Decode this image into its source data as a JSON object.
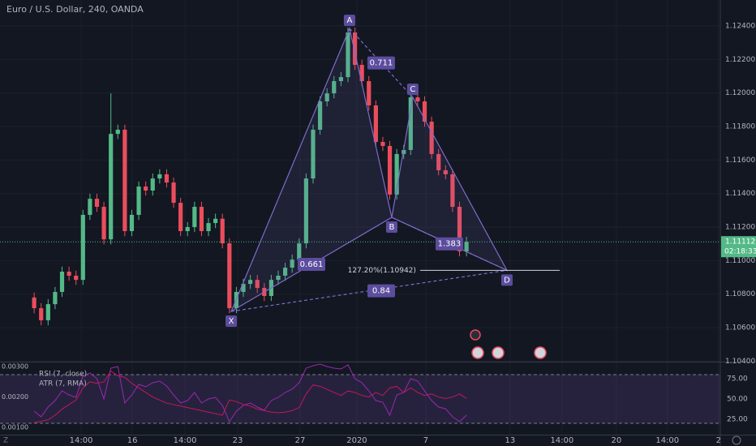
{
  "chart_data": [
    {
      "type": "candlestick",
      "title": "Euro / U.S. Dollar, 240, OANDA",
      "corner_label": "Z",
      "colors": {
        "up": "#53b987",
        "down": "#eb4d5c"
      },
      "open": [
        1.1078,
        1.10716,
        1.10644,
        1.1074,
        1.10813,
        1.10934,
        1.1091,
        1.10885,
        1.11273,
        1.11369,
        1.11321,
        1.11127,
        1.11756,
        1.11781,
        1.11176,
        1.11273,
        1.11442,
        1.11418,
        1.1149,
        1.11515,
        1.11466,
        1.11345,
        1.11176,
        1.112,
        1.11321,
        1.11176,
        1.11224,
        1.1125,
        1.11103,
        1.10716,
        1.10813,
        1.10861,
        1.10885,
        1.10837,
        1.10789,
        1.10885,
        1.1091,
        1.10958,
        1.11006,
        1.11103,
        1.1149,
        1.11781,
        1.1195,
        1.11998,
        1.12071,
        1.12095,
        1.12361,
        1.12168,
        1.12071,
        1.11926,
        1.11708,
        1.11684,
        1.11394,
        1.11636,
        1.1166,
        1.11974,
        1.1195,
        1.11829,
        1.11636,
        1.11539,
        1.11515,
        1.11321,
        1.11055
      ],
      "high": [
        1.1081,
        1.10746,
        1.1077,
        1.10843,
        1.10964,
        1.10964,
        1.1094,
        1.11303,
        1.11399,
        1.11399,
        1.11351,
        1.11998,
        1.11811,
        1.11811,
        1.11303,
        1.11472,
        1.11472,
        1.1152,
        1.11545,
        1.11545,
        1.11496,
        1.11375,
        1.1123,
        1.11351,
        1.11351,
        1.11254,
        1.1128,
        1.1128,
        1.11133,
        1.10843,
        1.10891,
        1.10915,
        1.10915,
        1.10867,
        1.10915,
        1.1094,
        1.10988,
        1.11036,
        1.11133,
        1.1152,
        1.11811,
        1.1198,
        1.12028,
        1.12101,
        1.12125,
        1.12391,
        1.12391,
        1.12198,
        1.12101,
        1.11956,
        1.11738,
        1.11714,
        1.11666,
        1.1169,
        1.12004,
        1.12004,
        1.1198,
        1.11859,
        1.11666,
        1.11569,
        1.11545,
        1.11351,
        1.11142
      ],
      "low": [
        1.10686,
        1.10614,
        1.10614,
        1.1071,
        1.10783,
        1.1088,
        1.10855,
        1.10855,
        1.11243,
        1.11291,
        1.11097,
        1.11097,
        1.11726,
        1.11146,
        1.11146,
        1.11243,
        1.11388,
        1.11388,
        1.1146,
        1.11436,
        1.11315,
        1.11146,
        1.11146,
        1.1117,
        1.11146,
        1.11146,
        1.11194,
        1.11073,
        1.10686,
        1.10686,
        1.10783,
        1.10831,
        1.10807,
        1.10759,
        1.10759,
        1.10855,
        1.1088,
        1.10928,
        1.10976,
        1.11073,
        1.1146,
        1.11751,
        1.1192,
        1.11968,
        1.12041,
        1.12065,
        1.12138,
        1.12041,
        1.11896,
        1.11678,
        1.11654,
        1.11364,
        1.11364,
        1.11606,
        1.1163,
        1.1192,
        1.11799,
        1.11606,
        1.11509,
        1.11485,
        1.11291,
        1.11025,
        1.11025
      ],
      "close": [
        1.10716,
        1.10644,
        1.1074,
        1.10813,
        1.10934,
        1.1091,
        1.10885,
        1.11273,
        1.11369,
        1.11321,
        1.11127,
        1.11756,
        1.11781,
        1.11176,
        1.11273,
        1.11442,
        1.11418,
        1.1149,
        1.11515,
        1.11466,
        1.11345,
        1.11176,
        1.112,
        1.11321,
        1.11176,
        1.11224,
        1.1125,
        1.11103,
        1.10716,
        1.10813,
        1.10861,
        1.10885,
        1.10837,
        1.10789,
        1.10885,
        1.1091,
        1.10958,
        1.11006,
        1.11103,
        1.1149,
        1.11781,
        1.1195,
        1.11998,
        1.12071,
        1.12095,
        1.12361,
        1.12168,
        1.12071,
        1.11926,
        1.11708,
        1.11684,
        1.11394,
        1.11636,
        1.1166,
        1.11974,
        1.1195,
        1.11829,
        1.11636,
        1.11539,
        1.11515,
        1.11321,
        1.11055,
        1.11112
      ],
      "xlim": [
        -4.9,
        98.4
      ],
      "xticks": [
        {
          "value": 6.74,
          "label": "14:00"
        },
        {
          "value": 14.07,
          "label": "16"
        },
        {
          "value": 21.63,
          "label": "14:00"
        },
        {
          "value": 29.19,
          "label": "23"
        },
        {
          "value": 38.14,
          "label": "27"
        },
        {
          "value": 46.28,
          "label": "2020"
        },
        {
          "value": 56.16,
          "label": "7"
        },
        {
          "value": 68.26,
          "label": "13"
        },
        {
          "value": 75.7,
          "label": "14:00"
        },
        {
          "value": 83.49,
          "label": "20"
        },
        {
          "value": 90.81,
          "label": "14:00"
        },
        {
          "value": 98.14,
          "label": "2"
        }
      ],
      "ylim": [
        1.10397,
        1.12555
      ],
      "yticks": [
        {
          "value": 1.124,
          "label": "1.12400"
        },
        {
          "value": 1.122,
          "label": "1.12200"
        },
        {
          "value": 1.12,
          "label": "1.12000"
        },
        {
          "value": 1.118,
          "label": "1.11800"
        },
        {
          "value": 1.116,
          "label": "1.11600"
        },
        {
          "value": 1.114,
          "label": "1.11400"
        },
        {
          "value": 1.112,
          "label": "1.11200"
        },
        {
          "value": 1.11,
          "label": "1.11000"
        },
        {
          "value": 1.108,
          "label": "1.10800"
        },
        {
          "value": 1.106,
          "label": "1.10600"
        },
        {
          "value": 1.104,
          "label": "1.10400"
        }
      ],
      "price_line": {
        "value": 1.11112,
        "label": "1.11112",
        "countdown": "02:18:33"
      },
      "pattern": {
        "color": "#7e6bc9",
        "points": [
          {
            "name": "X",
            "x": 28.26,
            "y": 1.10697
          },
          {
            "name": "A",
            "x": 45.23,
            "y": 1.12385
          },
          {
            "name": "B",
            "x": 51.28,
            "y": 1.11258
          },
          {
            "name": "C",
            "x": 54.3,
            "y": 1.11974
          },
          {
            "name": "D",
            "x": 67.8,
            "y": 1.10942
          }
        ],
        "ratios": {
          "XB": "0.661",
          "AC": "0.711",
          "BD": "1.383",
          "XD": "0.84"
        }
      },
      "fib": {
        "value": 1.10942,
        "label": "127.20%(1.10942)"
      },
      "events": [
        "3",
        "6",
        "7"
      ]
    },
    {
      "type": "line",
      "series": [
        {
          "name": "RSI (7, close)",
          "color": "#9c27b0",
          "axis": "y2",
          "values": [
            35,
            28,
            40,
            48,
            60,
            55,
            52,
            78,
            82,
            75,
            50,
            88,
            90,
            45,
            55,
            68,
            65,
            70,
            72,
            66,
            55,
            45,
            48,
            58,
            45,
            50,
            52,
            42,
            22,
            35,
            42,
            45,
            40,
            36,
            48,
            52,
            58,
            62,
            70,
            88,
            91,
            93,
            90,
            88,
            87,
            92,
            75,
            70,
            60,
            48,
            46,
            30,
            55,
            58,
            75,
            72,
            60,
            48,
            40,
            38,
            28,
            22,
            30
          ]
        },
        {
          "name": "ATR (7, RMA)",
          "color": "#c2185b",
          "values": [
            0.00115,
            0.0012,
            0.00125,
            0.0014,
            0.0016,
            0.00175,
            0.0019,
            0.0023,
            0.0025,
            0.00245,
            0.0025,
            0.00285,
            0.0027,
            0.00265,
            0.00245,
            0.0023,
            0.00215,
            0.002,
            0.0019,
            0.0018,
            0.00175,
            0.0017,
            0.00165,
            0.0016,
            0.00155,
            0.0015,
            0.00145,
            0.0014,
            0.0019,
            0.00185,
            0.00175,
            0.0017,
            0.0016,
            0.00155,
            0.0015,
            0.00148,
            0.0015,
            0.00155,
            0.00165,
            0.0021,
            0.0024,
            0.00235,
            0.00225,
            0.00215,
            0.00205,
            0.0022,
            0.00215,
            0.00205,
            0.002,
            0.00215,
            0.00205,
            0.0023,
            0.00235,
            0.00215,
            0.0023,
            0.00215,
            0.00205,
            0.0021,
            0.002,
            0.00195,
            0.002,
            0.0021,
            0.00195
          ]
        }
      ],
      "ylim": [
        0.00076,
        0.00311
      ],
      "yticks": [
        {
          "value": 0.003,
          "label": "0.00300"
        },
        {
          "value": 0.002,
          "label": "0.00200"
        },
        {
          "value": 0.001,
          "label": "0.00100"
        }
      ],
      "y2lim": [
        6,
        94
      ],
      "y2ticks": [
        {
          "value": 75,
          "label": "75.00"
        },
        {
          "value": 50,
          "label": "50.00"
        },
        {
          "value": 25,
          "label": "25.00"
        }
      ],
      "y2band": [
        20,
        80
      ]
    }
  ]
}
